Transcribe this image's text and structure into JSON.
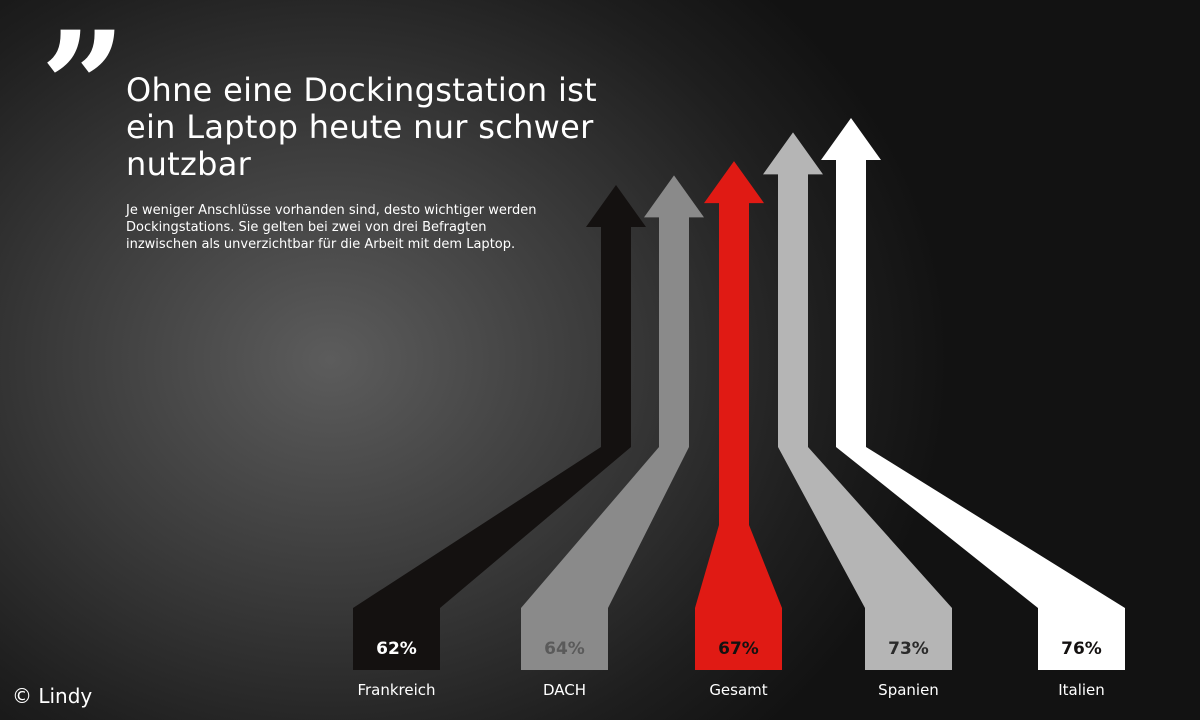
{
  "quote_mark": "”",
  "title": "Ohne eine Dockingstation ist ein Laptop heute nur schwer nutzbar",
  "subtitle": "Je weniger Anschlüsse vorhanden sind, desto wichtiger werden Dockingstations. Sie gelten bei zwei von drei Befragten inzwischen als unverzichtbar für die Arbeit mit dem Laptop.",
  "credit": "© Lindy",
  "chart_data": {
    "type": "bar",
    "categories": [
      "Frankreich",
      "DACH",
      "Gesamt",
      "Spanien",
      "Italien"
    ],
    "values": [
      62,
      64,
      67,
      73,
      76
    ],
    "value_labels": [
      "62%",
      "64%",
      "67%",
      "73%",
      "76%"
    ],
    "colors": [
      "#141110",
      "#8a8a8a",
      "#e01a14",
      "#b5b5b5",
      "#ffffff"
    ],
    "label_colors": [
      "#ffffff",
      "#5a5a5a",
      "#141110",
      "#2a2a2a",
      "#141110"
    ],
    "unit": "%"
  }
}
